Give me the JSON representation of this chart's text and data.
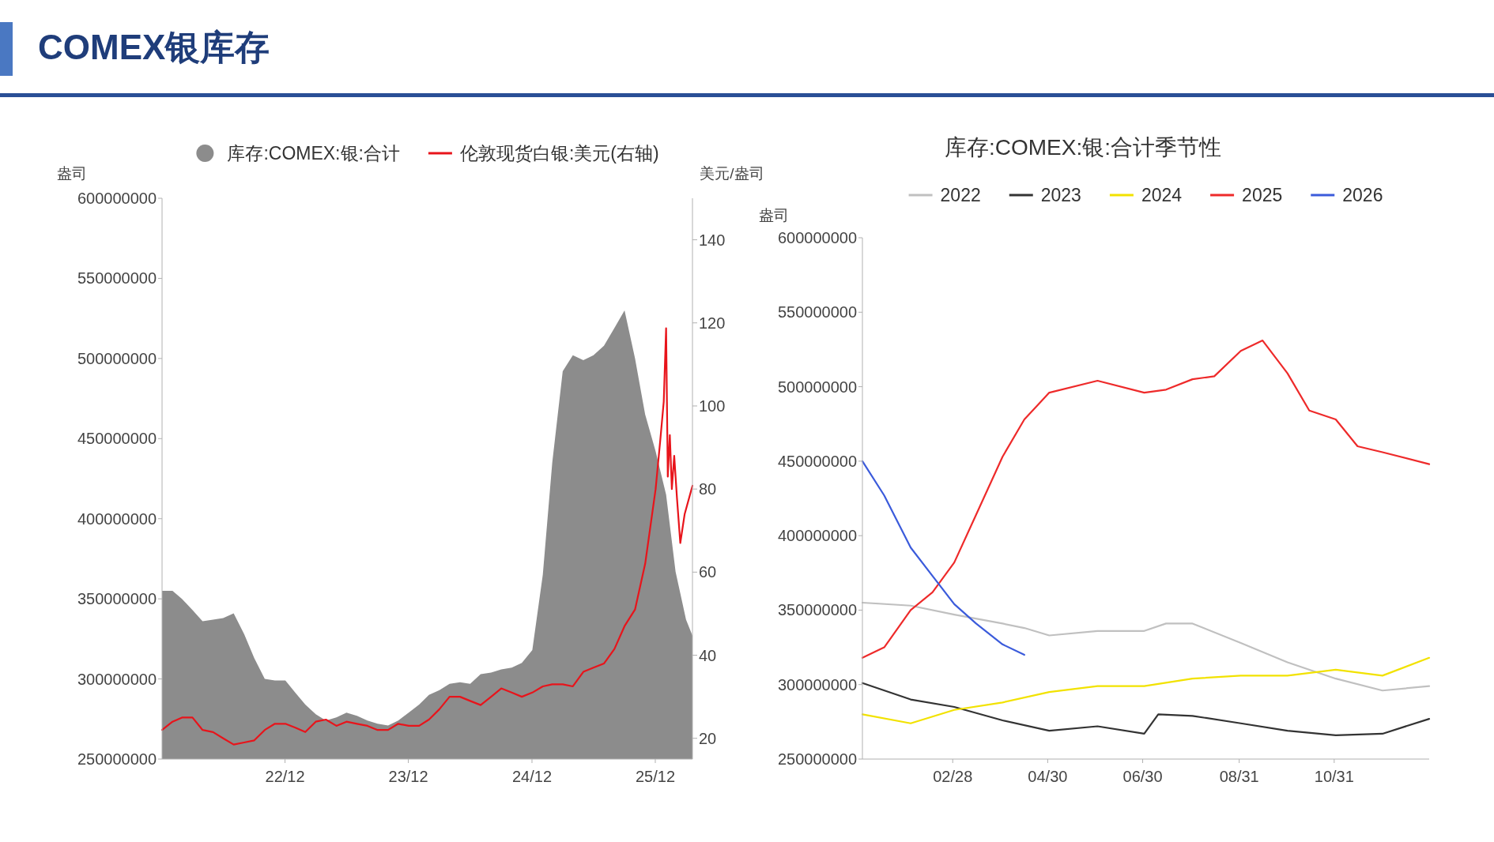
{
  "chart_data": [
    {
      "type": "area",
      "title": "COMEX银库存",
      "ylabel": "盎司",
      "y2label": "美元/盎司",
      "legend": "top",
      "x": [
        "2022-01",
        "2022-02",
        "2022-03",
        "2022-04",
        "2022-05",
        "2022-06",
        "2022-07",
        "2022-08",
        "2022-09",
        "2022-10",
        "2022-11",
        "2022-12",
        "2023-01",
        "2023-02",
        "2023-03",
        "2023-04",
        "2023-05",
        "2023-06",
        "2023-07",
        "2023-08",
        "2023-09",
        "2023-10",
        "2023-11",
        "2023-12",
        "2024-01",
        "2024-02",
        "2024-03",
        "2024-04",
        "2024-05",
        "2024-06",
        "2024-07",
        "2024-08",
        "2024-09",
        "2024-10",
        "2024-11",
        "2024-12",
        "2025-01",
        "2025-02",
        "2025-03",
        "2025-04",
        "2025-05",
        "2025-06",
        "2025-07",
        "2025-08",
        "2025-09",
        "2025-10",
        "2025-11",
        "2025-12",
        "2026-01",
        "2026-02",
        "2026-03",
        "2026-04",
        "2026-04-20"
      ],
      "xlim": [
        "2022-01-01",
        "2026-04-20"
      ],
      "xticks": [
        {
          "value": "2022-12-31",
          "label": "22/12"
        },
        {
          "value": "2023-12-31",
          "label": "23/12"
        },
        {
          "value": "2024-12-31",
          "label": "24/12"
        },
        {
          "value": "2025-12-31",
          "label": "25/12"
        }
      ],
      "ylim": [
        250000000,
        600000000
      ],
      "yticks": [
        250000000,
        300000000,
        350000000,
        400000000,
        450000000,
        500000000,
        550000000,
        600000000
      ],
      "y2lim": [
        15,
        150
      ],
      "y2ticks": [
        20,
        40,
        60,
        80,
        100,
        120,
        140
      ],
      "series": [
        {
          "name": "库存:COMEX:银:合计",
          "color": "#8c8c8c",
          "values": [
            355000000,
            355000000,
            350000000,
            343000000,
            336000000,
            337000000,
            338000000,
            341000000,
            328000000,
            313000000,
            300000000,
            299000000,
            299000000,
            291000000,
            284000000,
            278000000,
            274000000,
            276000000,
            279000000,
            277000000,
            274000000,
            272000000,
            271000000,
            274000000,
            279000000,
            284000000,
            290000000,
            293000000,
            297000000,
            298000000,
            297000000,
            303000000,
            304000000,
            306000000,
            307000000,
            310000000,
            318000000,
            365000000,
            435000000,
            492000000,
            502000000,
            499000000,
            502000000,
            508000000,
            519000000,
            530000000,
            500000000,
            465000000,
            442000000,
            415000000,
            367000000,
            337000000,
            327000000
          ]
        },
        {
          "name": "伦敦现货白银:美元(右轴)",
          "type": "line",
          "axis": "y2",
          "color": "#e8141b",
          "x": [
            "2022-01",
            "2022-02",
            "2022-03",
            "2022-04",
            "2022-05",
            "2022-06",
            "2022-07",
            "2022-08",
            "2022-09",
            "2022-10",
            "2022-11",
            "2022-12",
            "2023-01",
            "2023-02",
            "2023-03",
            "2023-04",
            "2023-05",
            "2023-06",
            "2023-07",
            "2023-08",
            "2023-09",
            "2023-10",
            "2023-11",
            "2023-12",
            "2024-01",
            "2024-02",
            "2024-03",
            "2024-04",
            "2024-05",
            "2024-06",
            "2024-07",
            "2024-08",
            "2024-09",
            "2024-10",
            "2024-11",
            "2024-12",
            "2025-01",
            "2025-02",
            "2025-03",
            "2025-04",
            "2025-05",
            "2025-06",
            "2025-07",
            "2025-08",
            "2025-09",
            "2025-10",
            "2025-11",
            "2025-12",
            "2026-01",
            "2026-01-15",
            "2026-01-25",
            "2026-02-01",
            "2026-02-06",
            "2026-02-12",
            "2026-02-18",
            "2026-02-25",
            "2026-03-05",
            "2026-03-15",
            "2026-03-28",
            "2026-04-20"
          ],
          "values": [
            22,
            24,
            25,
            25,
            22,
            21.5,
            20,
            18.5,
            19,
            19.5,
            22,
            23.5,
            23.5,
            22.5,
            21.5,
            24,
            24.5,
            23,
            24,
            23.5,
            23,
            22,
            22,
            23.5,
            23,
            23,
            24.5,
            27,
            30,
            30,
            29,
            28,
            30,
            32,
            31,
            30,
            31,
            32.5,
            33,
            33,
            32.5,
            36,
            37,
            38,
            41.5,
            47,
            51,
            62,
            80,
            92,
            101,
            118.7,
            83,
            93,
            80,
            88,
            78,
            67,
            74,
            80.8
          ]
        }
      ]
    },
    {
      "type": "line",
      "title": "库存:COMEX:银:合计季节性",
      "ylabel": "盎司",
      "legend": "top",
      "xlim": [
        "--01-01",
        "--12-31"
      ],
      "xticks": [
        {
          "value": "--02-28",
          "label": "02/28"
        },
        {
          "value": "--04-30",
          "label": "04/30"
        },
        {
          "value": "--06-30",
          "label": "06/30"
        },
        {
          "value": "--08-31",
          "label": "08/31"
        },
        {
          "value": "--10-31",
          "label": "10/31"
        }
      ],
      "ylim": [
        250000000,
        600000000
      ],
      "yticks": [
        250000000,
        300000000,
        350000000,
        400000000,
        450000000,
        500000000,
        550000000,
        600000000
      ],
      "series": [
        {
          "name": "2022",
          "color": "#c0c0c0",
          "x": [
            "--01-01",
            "--02-01",
            "--03-01",
            "--04-01",
            "--04-15",
            "--05-01",
            "--06-01",
            "--07-01",
            "--07-15",
            "--08-01",
            "--09-01",
            "--10-01",
            "--11-01",
            "--12-01",
            "--12-31"
          ],
          "values": [
            355000000,
            353000000,
            347000000,
            341000000,
            338000000,
            333000000,
            336000000,
            336000000,
            341000000,
            341000000,
            328000000,
            315000000,
            304000000,
            296000000,
            299000000
          ]
        },
        {
          "name": "2023",
          "color": "#333333",
          "x": [
            "--01-01",
            "--02-01",
            "--03-01",
            "--04-01",
            "--05-01",
            "--06-01",
            "--07-01",
            "--07-10",
            "--08-01",
            "--09-01",
            "--10-01",
            "--11-01",
            "--12-01",
            "--12-31"
          ],
          "values": [
            301000000,
            290000000,
            285000000,
            276000000,
            269000000,
            272000000,
            267000000,
            280000000,
            279000000,
            274000000,
            269000000,
            266000000,
            267000000,
            277000000
          ]
        },
        {
          "name": "2024",
          "color": "#f2e200",
          "x": [
            "--01-01",
            "--02-01",
            "--03-01",
            "--04-01",
            "--05-01",
            "--06-01",
            "--07-01",
            "--08-01",
            "--09-01",
            "--10-01",
            "--11-01",
            "--12-01",
            "--12-31"
          ],
          "values": [
            280000000,
            274000000,
            283000000,
            288000000,
            295000000,
            299000000,
            299000000,
            304000000,
            306000000,
            306000000,
            310000000,
            306000000,
            318000000
          ]
        },
        {
          "name": "2025",
          "color": "#ee2a2a",
          "x": [
            "--01-01",
            "--01-15",
            "--02-01",
            "--02-15",
            "--03-01",
            "--03-15",
            "--04-01",
            "--04-15",
            "--05-01",
            "--06-01",
            "--07-01",
            "--07-15",
            "--08-01",
            "--08-15",
            "--09-01",
            "--09-15",
            "--10-01",
            "--10-15",
            "--11-01",
            "--11-15",
            "--12-01",
            "--12-31"
          ],
          "values": [
            318000000,
            325000000,
            350000000,
            362000000,
            382000000,
            414000000,
            453000000,
            478000000,
            496000000,
            504000000,
            496000000,
            498000000,
            505000000,
            507000000,
            524000000,
            531000000,
            509000000,
            484000000,
            478000000,
            460000000,
            456000000,
            448000000
          ]
        },
        {
          "name": "2026",
          "color": "#3b5bdb",
          "x": [
            "--01-01",
            "--01-15",
            "--02-01",
            "--02-15",
            "--03-01",
            "--03-15",
            "--04-01",
            "--04-15"
          ],
          "values": [
            450000000,
            427000000,
            392000000,
            373000000,
            354000000,
            341000000,
            327000000,
            320000000
          ]
        }
      ]
    }
  ]
}
